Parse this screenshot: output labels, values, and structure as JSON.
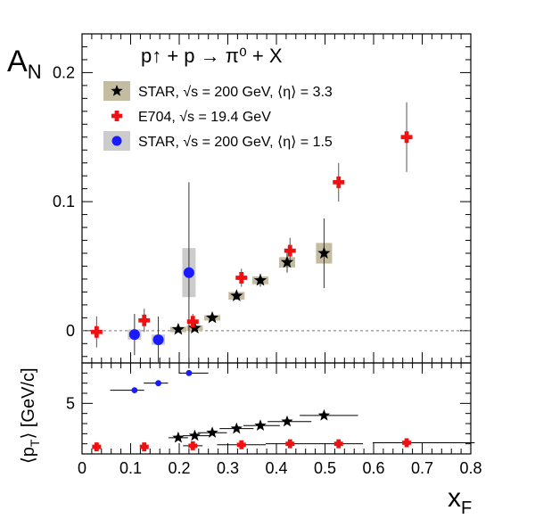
{
  "chart_data": [
    {
      "type": "scatter",
      "panel": "top",
      "title": "p↑ + p → π⁰ + X",
      "ylabel_main": "A",
      "ylabel_sub": "N",
      "xlim": [
        0,
        0.8
      ],
      "ylim": [
        -0.025,
        0.23
      ],
      "yticks": [
        "0",
        "0.1",
        "0.2"
      ],
      "ytick_values": [
        0,
        0.1,
        0.2
      ],
      "zero_line": true,
      "legend": [
        {
          "name": "STAR, √s = 200 GeV, ⟨η⟩ = 3.3",
          "color": "#000000",
          "box_color": "#c4bca0",
          "marker": "star"
        },
        {
          "name": "E704, √s = 19.4 GeV",
          "color": "#ee1111",
          "marker": "cross"
        },
        {
          "name": "STAR, √s = 200 GeV, ⟨η⟩ = 1.5",
          "color": "#1a1aff",
          "box_color": "#cccccc",
          "marker": "circle"
        }
      ],
      "series": [
        {
          "name": "STAR, √s = 200 GeV, ⟨η⟩ = 3.3",
          "marker": "star",
          "color": "#000000",
          "box_color": "#c4bca0",
          "points": [
            {
              "x": 0.198,
              "y": 0.001,
              "err": 0.001,
              "box": 0.002
            },
            {
              "x": 0.232,
              "y": 0.002,
              "err": 0.002,
              "box": 0.002
            },
            {
              "x": 0.268,
              "y": 0.01,
              "err": 0.002,
              "box": 0.002
            },
            {
              "x": 0.318,
              "y": 0.027,
              "err": 0.003,
              "box": 0.003
            },
            {
              "x": 0.367,
              "y": 0.039,
              "err": 0.005,
              "box": 0.003
            },
            {
              "x": 0.422,
              "y": 0.053,
              "err": 0.008,
              "box": 0.004
            },
            {
              "x": 0.498,
              "y": 0.06,
              "err": 0.027,
              "box": 0.008
            }
          ]
        },
        {
          "name": "E704, √s = 19.4 GeV",
          "marker": "cross",
          "color": "#ee1111",
          "points": [
            {
              "x": 0.03,
              "y": -0.001,
              "err": 0.012
            },
            {
              "x": 0.128,
              "y": 0.008,
              "err": 0.009
            },
            {
              "x": 0.228,
              "y": 0.007,
              "err": 0.006
            },
            {
              "x": 0.328,
              "y": 0.041,
              "err": 0.007
            },
            {
              "x": 0.428,
              "y": 0.062,
              "err": 0.01
            },
            {
              "x": 0.528,
              "y": 0.115,
              "err": 0.015
            },
            {
              "x": 0.668,
              "y": 0.15,
              "err": 0.027
            }
          ]
        },
        {
          "name": "STAR, √s = 200 GeV, ⟨η⟩ = 1.5",
          "marker": "circle",
          "color": "#1a1aff",
          "box_color": "#cccccc",
          "points": [
            {
              "x": 0.108,
              "y": -0.003,
              "err": 0.016,
              "box": 0.004
            },
            {
              "x": 0.157,
              "y": -0.007,
              "err": 0.018,
              "box": 0.004
            },
            {
              "x": 0.22,
              "y": 0.045,
              "err": 0.07,
              "box": 0.019
            }
          ]
        }
      ]
    },
    {
      "type": "scatter",
      "panel": "bottom",
      "ylabel": "⟨p",
      "ylabel_sub": "T",
      "ylabel_tail": "⟩ [GeV/c]",
      "xlabel_main": "x",
      "xlabel_sub": "F",
      "xlim": [
        0,
        0.8
      ],
      "ylim": [
        0,
        9
      ],
      "yticks": [
        "5"
      ],
      "ytick_values": [
        5
      ],
      "xticks": [
        "0",
        "0.1",
        "0.2",
        "0.3",
        "0.4",
        "0.5",
        "0.6",
        "0.7",
        "0.8"
      ],
      "xtick_values": [
        0,
        0.1,
        0.2,
        0.3,
        0.4,
        0.5,
        0.6,
        0.7,
        0.8
      ],
      "series": [
        {
          "name": "STAR, √s = 200 GeV, ⟨η⟩ = 1.5",
          "marker": "circle-small",
          "color": "#1a1aff",
          "points": [
            {
              "x": 0.108,
              "y": 6.3,
              "xerr": [
                0.05,
                0.02
              ]
            },
            {
              "x": 0.157,
              "y": 7.0,
              "xerr": [
                0.03,
                0.02
              ]
            },
            {
              "x": 0.22,
              "y": 8.0,
              "xerr": [
                0.02,
                0.04
              ]
            }
          ]
        },
        {
          "name": "STAR, √s = 200 GeV, ⟨η⟩ = 3.3",
          "marker": "star",
          "color": "#000000",
          "points": [
            {
              "x": 0.198,
              "y": 1.6,
              "xerr": [
                0.02,
                0.02
              ]
            },
            {
              "x": 0.232,
              "y": 1.8,
              "xerr": [
                0.025,
                0.03
              ]
            },
            {
              "x": 0.268,
              "y": 2.1,
              "xerr": [
                0.03,
                0.03
              ]
            },
            {
              "x": 0.318,
              "y": 2.5,
              "xerr": [
                0.035,
                0.035
              ]
            },
            {
              "x": 0.367,
              "y": 2.8,
              "xerr": [
                0.035,
                0.04
              ]
            },
            {
              "x": 0.422,
              "y": 3.2,
              "xerr": [
                0.04,
                0.05
              ]
            },
            {
              "x": 0.498,
              "y": 3.8,
              "xerr": [
                0.05,
                0.07
              ]
            }
          ]
        },
        {
          "name": "E704, √s = 19.4 GeV",
          "marker": "cross",
          "color": "#ee1111",
          "points": [
            {
              "x": 0.03,
              "y": 0.7,
              "xerr": [
                0.0,
                0.0
              ]
            },
            {
              "x": 0.128,
              "y": 0.7,
              "xerr": [
                0.0,
                0.0
              ]
            },
            {
              "x": 0.228,
              "y": 0.8,
              "xerr": [
                0.02,
                0.02
              ]
            },
            {
              "x": 0.328,
              "y": 0.9,
              "xerr": [
                0.05,
                0.05
              ]
            },
            {
              "x": 0.428,
              "y": 1.0,
              "xerr": [
                0.05,
                0.05
              ]
            },
            {
              "x": 0.528,
              "y": 1.0,
              "xerr": [
                0.05,
                0.05
              ]
            },
            {
              "x": 0.668,
              "y": 1.1,
              "xerr": [
                0.07,
                0.14
              ]
            }
          ]
        }
      ]
    }
  ]
}
